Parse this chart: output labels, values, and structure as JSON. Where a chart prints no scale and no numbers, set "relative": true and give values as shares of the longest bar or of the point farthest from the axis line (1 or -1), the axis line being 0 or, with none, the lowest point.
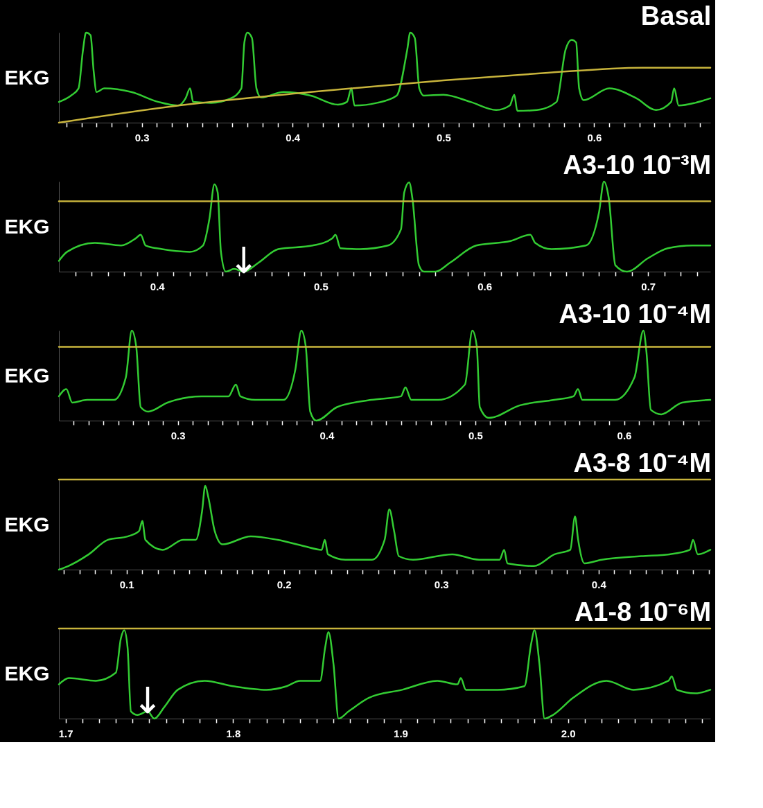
{
  "chart_data": [
    {
      "type": "line",
      "title": "Basal",
      "ylabel": "EKG",
      "relative": true,
      "xlim": [
        0.245,
        0.677
      ],
      "xticks": [
        {
          "value": 0.25,
          "label": null
        },
        {
          "value": 0.26,
          "label": null
        },
        {
          "value": 0.27,
          "label": null
        },
        {
          "value": 0.28,
          "label": null
        },
        {
          "value": 0.29,
          "label": null
        },
        0.3,
        {
          "value": 0.31,
          "label": null
        },
        {
          "value": 0.32,
          "label": null
        },
        {
          "value": 0.33,
          "label": null
        },
        {
          "value": 0.34,
          "label": null
        },
        {
          "value": 0.35,
          "label": null
        },
        {
          "value": 0.36,
          "label": null
        },
        {
          "value": 0.37,
          "label": null
        },
        {
          "value": 0.38,
          "label": null
        },
        {
          "value": 0.39,
          "label": null
        },
        0.4,
        {
          "value": 0.41,
          "label": null
        },
        {
          "value": 0.42,
          "label": null
        },
        {
          "value": 0.43,
          "label": null
        },
        {
          "value": 0.44,
          "label": null
        },
        {
          "value": 0.45,
          "label": null
        },
        {
          "value": 0.46,
          "label": null
        },
        {
          "value": 0.47,
          "label": null
        },
        {
          "value": 0.48,
          "label": null
        },
        {
          "value": 0.49,
          "label": null
        },
        0.5,
        {
          "value": 0.51,
          "label": null
        },
        {
          "value": 0.52,
          "label": null
        },
        {
          "value": 0.53,
          "label": null
        },
        {
          "value": 0.54,
          "label": null
        },
        {
          "value": 0.55,
          "label": null
        },
        {
          "value": 0.56,
          "label": null
        },
        {
          "value": 0.57,
          "label": null
        },
        {
          "value": 0.58,
          "label": null
        },
        {
          "value": 0.59,
          "label": null
        },
        0.6,
        {
          "value": 0.61,
          "label": null
        },
        {
          "value": 0.62,
          "label": null
        },
        {
          "value": 0.63,
          "label": null
        },
        {
          "value": 0.64,
          "label": null
        },
        {
          "value": 0.65,
          "label": null
        },
        {
          "value": 0.66,
          "label": null
        },
        {
          "value": 0.67,
          "label": null
        }
      ],
      "series": [
        {
          "color": "#33cc33",
          "x": [
            0.245,
            0.253,
            0.258,
            0.261,
            0.263,
            0.266,
            0.268,
            0.27,
            0.275,
            0.293,
            0.311,
            0.324,
            0.329,
            0.332,
            0.334,
            0.346,
            0.359,
            0.366,
            0.368,
            0.37,
            0.373,
            0.376,
            0.379,
            0.394,
            0.412,
            0.43,
            0.436,
            0.439,
            0.441,
            0.456,
            0.469,
            0.476,
            0.478,
            0.481,
            0.484,
            0.487,
            0.5,
            0.518,
            0.535,
            0.544,
            0.547,
            0.549,
            0.562,
            0.575,
            0.581,
            0.585,
            0.588,
            0.59,
            0.593,
            0.61,
            0.628,
            0.641,
            0.651,
            0.653,
            0.656,
            0.667,
            0.677
          ],
          "values": [
            0.23,
            0.3,
            0.38,
            0.81,
            1,
            0.97,
            0.58,
            0.34,
            0.38,
            0.34,
            0.23,
            0.19,
            0.27,
            0.38,
            0.23,
            0.22,
            0.27,
            0.38,
            0.89,
            1,
            0.94,
            0.38,
            0.28,
            0.34,
            0.3,
            0.2,
            0.23,
            0.38,
            0.19,
            0.22,
            0.3,
            0.81,
            1,
            0.94,
            0.38,
            0.3,
            0.31,
            0.23,
            0.14,
            0.19,
            0.31,
            0.13,
            0.14,
            0.23,
            0.81,
            0.92,
            0.89,
            0.38,
            0.25,
            0.38,
            0.27,
            0.14,
            0.23,
            0.38,
            0.19,
            0.22,
            0.27
          ]
        },
        {
          "color": "#c8b43c",
          "x": [
            0.245,
            0.324,
            0.412,
            0.5,
            0.566,
            0.632,
            0.677
          ],
          "values": [
            0,
            0.19,
            0.34,
            0.47,
            0.55,
            0.61,
            0.61
          ]
        }
      ]
    },
    {
      "type": "line",
      "title": "A3-10 10⁻³M",
      "ylabel": "EKG",
      "relative": true,
      "xlim": [
        0.34,
        0.738
      ],
      "xticks": [
        {
          "value": 0.35,
          "label": null
        },
        {
          "value": 0.36,
          "label": null
        },
        {
          "value": 0.37,
          "label": null
        },
        {
          "value": 0.38,
          "label": null
        },
        {
          "value": 0.39,
          "label": null
        },
        0.4,
        {
          "value": 0.41,
          "label": null
        },
        {
          "value": 0.42,
          "label": null
        },
        {
          "value": 0.43,
          "label": null
        },
        {
          "value": 0.44,
          "label": null
        },
        {
          "value": 0.45,
          "label": null
        },
        {
          "value": 0.46,
          "label": null
        },
        {
          "value": 0.47,
          "label": null
        },
        {
          "value": 0.48,
          "label": null
        },
        {
          "value": 0.49,
          "label": null
        },
        0.5,
        {
          "value": 0.51,
          "label": null
        },
        {
          "value": 0.52,
          "label": null
        },
        {
          "value": 0.53,
          "label": null
        },
        {
          "value": 0.54,
          "label": null
        },
        {
          "value": 0.55,
          "label": null
        },
        {
          "value": 0.56,
          "label": null
        },
        {
          "value": 0.57,
          "label": null
        },
        {
          "value": 0.58,
          "label": null
        },
        {
          "value": 0.59,
          "label": null
        },
        0.6,
        {
          "value": 0.61,
          "label": null
        },
        {
          "value": 0.62,
          "label": null
        },
        {
          "value": 0.63,
          "label": null
        },
        {
          "value": 0.64,
          "label": null
        },
        {
          "value": 0.65,
          "label": null
        },
        {
          "value": 0.66,
          "label": null
        },
        {
          "value": 0.67,
          "label": null
        },
        {
          "value": 0.68,
          "label": null
        },
        {
          "value": 0.69,
          "label": null
        },
        0.7,
        {
          "value": 0.71,
          "label": null
        },
        {
          "value": 0.72,
          "label": null
        },
        {
          "value": 0.73,
          "label": null
        }
      ],
      "annotations": [
        {
          "text": "↓",
          "x": 0.453,
          "y": 0
        }
      ],
      "series": [
        {
          "color": "#33cc33",
          "x": [
            0.34,
            0.345,
            0.362,
            0.378,
            0.387,
            0.39,
            0.393,
            0.403,
            0.42,
            0.428,
            0.432,
            0.435,
            0.437,
            0.439,
            0.442,
            0.447,
            0.453,
            0.462,
            0.474,
            0.495,
            0.507,
            0.509,
            0.512,
            0.524,
            0.541,
            0.549,
            0.551,
            0.554,
            0.556,
            0.56,
            0.563,
            0.57,
            0.579,
            0.595,
            0.616,
            0.628,
            0.631,
            0.641,
            0.662,
            0.67,
            0.673,
            0.676,
            0.68,
            0.687,
            0.7,
            0.712,
            0.727,
            0.738
          ],
          "values": [
            0.12,
            0.22,
            0.32,
            0.29,
            0.37,
            0.41,
            0.29,
            0.25,
            0.22,
            0.29,
            0.59,
            0.97,
            0.88,
            0.22,
            0,
            0.03,
            0,
            0.1,
            0.25,
            0.29,
            0.37,
            0.41,
            0.26,
            0.25,
            0.29,
            0.47,
            0.88,
            0.99,
            0.81,
            0.07,
            0,
            0,
            0.1,
            0.29,
            0.34,
            0.41,
            0.32,
            0.25,
            0.29,
            0.66,
            1,
            0.81,
            0.07,
            0,
            0.15,
            0.26,
            0.29,
            0.29
          ]
        },
        {
          "color": "#c8b43c",
          "x": [
            0.34,
            0.738
          ],
          "values": [
            0.78,
            0.78
          ]
        }
      ]
    },
    {
      "type": "line",
      "title": "A3-10 10⁻⁴M",
      "ylabel": "EKG",
      "relative": true,
      "xlim": [
        0.22,
        0.658
      ],
      "xticks": [
        {
          "value": 0.23,
          "label": null
        },
        {
          "value": 0.24,
          "label": null
        },
        {
          "value": 0.25,
          "label": null
        },
        {
          "value": 0.26,
          "label": null
        },
        {
          "value": 0.27,
          "label": null
        },
        {
          "value": 0.28,
          "label": null
        },
        {
          "value": 0.29,
          "label": null
        },
        0.3,
        {
          "value": 0.31,
          "label": null
        },
        {
          "value": 0.32,
          "label": null
        },
        {
          "value": 0.33,
          "label": null
        },
        {
          "value": 0.34,
          "label": null
        },
        {
          "value": 0.35,
          "label": null
        },
        {
          "value": 0.36,
          "label": null
        },
        {
          "value": 0.37,
          "label": null
        },
        {
          "value": 0.38,
          "label": null
        },
        {
          "value": 0.39,
          "label": null
        },
        0.4,
        {
          "value": 0.41,
          "label": null
        },
        {
          "value": 0.42,
          "label": null
        },
        {
          "value": 0.43,
          "label": null
        },
        {
          "value": 0.44,
          "label": null
        },
        {
          "value": 0.45,
          "label": null
        },
        {
          "value": 0.46,
          "label": null
        },
        {
          "value": 0.47,
          "label": null
        },
        {
          "value": 0.48,
          "label": null
        },
        {
          "value": 0.49,
          "label": null
        },
        0.5,
        {
          "value": 0.51,
          "label": null
        },
        {
          "value": 0.52,
          "label": null
        },
        {
          "value": 0.53,
          "label": null
        },
        {
          "value": 0.54,
          "label": null
        },
        {
          "value": 0.55,
          "label": null
        },
        {
          "value": 0.56,
          "label": null
        },
        {
          "value": 0.57,
          "label": null
        },
        {
          "value": 0.58,
          "label": null
        },
        {
          "value": 0.59,
          "label": null
        },
        0.6,
        {
          "value": 0.61,
          "label": null
        },
        {
          "value": 0.62,
          "label": null
        },
        {
          "value": 0.63,
          "label": null
        },
        {
          "value": 0.64,
          "label": null
        },
        {
          "value": 0.65,
          "label": null
        }
      ],
      "series": [
        {
          "color": "#33cc33",
          "x": [
            0.22,
            0.225,
            0.229,
            0.239,
            0.257,
            0.265,
            0.269,
            0.272,
            0.275,
            0.28,
            0.293,
            0.316,
            0.334,
            0.339,
            0.342,
            0.352,
            0.371,
            0.379,
            0.383,
            0.386,
            0.389,
            0.393,
            0.407,
            0.43,
            0.45,
            0.453,
            0.457,
            0.475,
            0.493,
            0.498,
            0.501,
            0.503,
            0.509,
            0.53,
            0.553,
            0.566,
            0.569,
            0.572,
            0.594,
            0.607,
            0.613,
            0.615,
            0.618,
            0.625,
            0.639,
            0.658
          ],
          "values": [
            0.27,
            0.35,
            0.2,
            0.23,
            0.23,
            0.48,
            1,
            0.82,
            0.15,
            0.1,
            0.2,
            0.27,
            0.27,
            0.4,
            0.27,
            0.23,
            0.23,
            0.57,
            1,
            0.82,
            0.1,
            0,
            0.15,
            0.23,
            0.27,
            0.37,
            0.23,
            0.23,
            0.4,
            1,
            0.82,
            0.15,
            0.03,
            0.17,
            0.23,
            0.27,
            0.35,
            0.23,
            0.23,
            0.48,
            1,
            0.77,
            0.12,
            0.07,
            0.2,
            0.23
          ]
        },
        {
          "color": "#c8b43c",
          "x": [
            0.22,
            0.658
          ],
          "values": [
            0.82,
            0.82
          ]
        }
      ]
    },
    {
      "type": "line",
      "title": "A3-8 10⁻⁴M",
      "ylabel": "EKG",
      "relative": true,
      "xlim": [
        0.057,
        0.471
      ],
      "xticks": [
        {
          "value": 0.06,
          "label": null
        },
        {
          "value": 0.07,
          "label": null
        },
        {
          "value": 0.08,
          "label": null
        },
        {
          "value": 0.09,
          "label": null
        },
        0.1,
        {
          "value": 0.11,
          "label": null
        },
        {
          "value": 0.12,
          "label": null
        },
        {
          "value": 0.13,
          "label": null
        },
        {
          "value": 0.14,
          "label": null
        },
        {
          "value": 0.15,
          "label": null
        },
        {
          "value": 0.16,
          "label": null
        },
        {
          "value": 0.17,
          "label": null
        },
        {
          "value": 0.18,
          "label": null
        },
        {
          "value": 0.19,
          "label": null
        },
        0.2,
        {
          "value": 0.21,
          "label": null
        },
        {
          "value": 0.22,
          "label": null
        },
        {
          "value": 0.23,
          "label": null
        },
        {
          "value": 0.24,
          "label": null
        },
        {
          "value": 0.25,
          "label": null
        },
        {
          "value": 0.26,
          "label": null
        },
        {
          "value": 0.27,
          "label": null
        },
        {
          "value": 0.28,
          "label": null
        },
        {
          "value": 0.29,
          "label": null
        },
        0.3,
        {
          "value": 0.31,
          "label": null
        },
        {
          "value": 0.32,
          "label": null
        },
        {
          "value": 0.33,
          "label": null
        },
        {
          "value": 0.34,
          "label": null
        },
        {
          "value": 0.35,
          "label": null
        },
        {
          "value": 0.36,
          "label": null
        },
        {
          "value": 0.37,
          "label": null
        },
        {
          "value": 0.38,
          "label": null
        },
        {
          "value": 0.39,
          "label": null
        },
        0.4,
        {
          "value": 0.41,
          "label": null
        },
        {
          "value": 0.42,
          "label": null
        },
        {
          "value": 0.43,
          "label": null
        },
        {
          "value": 0.44,
          "label": null
        },
        {
          "value": 0.45,
          "label": null
        },
        {
          "value": 0.46,
          "label": null
        },
        {
          "value": 0.47,
          "label": null
        }
      ],
      "series": [
        {
          "color": "#33cc33",
          "x": [
            0.057,
            0.063,
            0.076,
            0.088,
            0.101,
            0.108,
            0.11,
            0.112,
            0.123,
            0.136,
            0.144,
            0.148,
            0.15,
            0.152,
            0.156,
            0.161,
            0.179,
            0.196,
            0.213,
            0.224,
            0.226,
            0.228,
            0.239,
            0.256,
            0.264,
            0.267,
            0.27,
            0.273,
            0.282,
            0.307,
            0.324,
            0.337,
            0.34,
            0.342,
            0.359,
            0.372,
            0.382,
            0.385,
            0.387,
            0.391,
            0.402,
            0.427,
            0.445,
            0.458,
            0.46,
            0.463,
            0.471
          ],
          "values": [
            0,
            0.04,
            0.17,
            0.33,
            0.37,
            0.43,
            0.54,
            0.33,
            0.22,
            0.33,
            0.33,
            0.65,
            0.93,
            0.8,
            0.43,
            0.28,
            0.37,
            0.33,
            0.26,
            0.22,
            0.33,
            0.17,
            0.11,
            0.11,
            0.33,
            0.67,
            0.43,
            0.15,
            0.11,
            0.17,
            0.11,
            0.11,
            0.22,
            0.07,
            0.04,
            0.17,
            0.22,
            0.59,
            0.33,
            0.07,
            0.11,
            0.15,
            0.17,
            0.22,
            0.33,
            0.17,
            0.22
          ]
        },
        {
          "color": "#c8b43c",
          "x": [
            0.057,
            0.471
          ],
          "values": [
            1,
            1
          ]
        }
      ]
    },
    {
      "type": "line",
      "title": "A1-8 10⁻⁶M",
      "ylabel": "EKG",
      "relative": true,
      "xlim": [
        1.696,
        2.085
      ],
      "xticks": [
        1.7,
        {
          "value": 1.71,
          "label": null
        },
        {
          "value": 1.72,
          "label": null
        },
        {
          "value": 1.73,
          "label": null
        },
        {
          "value": 1.74,
          "label": null
        },
        {
          "value": 1.75,
          "label": null
        },
        {
          "value": 1.76,
          "label": null
        },
        {
          "value": 1.77,
          "label": null
        },
        {
          "value": 1.78,
          "label": null
        },
        {
          "value": 1.79,
          "label": null
        },
        1.8,
        {
          "value": 1.81,
          "label": null
        },
        {
          "value": 1.82,
          "label": null
        },
        {
          "value": 1.83,
          "label": null
        },
        {
          "value": 1.84,
          "label": null
        },
        {
          "value": 1.85,
          "label": null
        },
        {
          "value": 1.86,
          "label": null
        },
        {
          "value": 1.87,
          "label": null
        },
        {
          "value": 1.88,
          "label": null
        },
        {
          "value": 1.89,
          "label": null
        },
        1.9,
        {
          "value": 1.91,
          "label": null
        },
        {
          "value": 1.92,
          "label": null
        },
        {
          "value": 1.93,
          "label": null
        },
        {
          "value": 1.94,
          "label": null
        },
        {
          "value": 1.95,
          "label": null
        },
        {
          "value": 1.96,
          "label": null
        },
        {
          "value": 1.97,
          "label": null
        },
        {
          "value": 1.98,
          "label": null
        },
        {
          "value": 1.99,
          "label": null
        },
        {
          "value": 2,
          "label": "2.0"
        },
        {
          "value": 2.01,
          "label": null
        },
        {
          "value": 2.02,
          "label": null
        },
        {
          "value": 2.03,
          "label": null
        },
        {
          "value": 2.04,
          "label": null
        },
        {
          "value": 2.05,
          "label": null
        },
        {
          "value": 2.06,
          "label": null
        },
        {
          "value": 2.07,
          "label": null
        },
        {
          "value": 2.08,
          "label": null
        }
      ],
      "annotations": [
        {
          "text": "↓",
          "x": 1.749,
          "y": 0.08
        }
      ],
      "series": [
        {
          "color": "#33cc33",
          "x": [
            1.696,
            1.702,
            1.718,
            1.73,
            1.733,
            1.735,
            1.737,
            1.739,
            1.743,
            1.749,
            1.753,
            1.759,
            1.767,
            1.783,
            1.8,
            1.82,
            1.832,
            1.84,
            1.852,
            1.855,
            1.857,
            1.86,
            1.863,
            1.869,
            1.881,
            1.901,
            1.922,
            1.934,
            1.936,
            1.939,
            1.958,
            1.974,
            1.978,
            1.98,
            1.983,
            1.986,
            1.991,
            2.003,
            2.023,
            2.039,
            2.06,
            2.062,
            2.065,
            2.076,
            2.085
          ],
          "values": [
            0.38,
            0.45,
            0.42,
            0.51,
            0.89,
            0.98,
            0.79,
            0.08,
            0.04,
            0.08,
            0,
            0.13,
            0.32,
            0.42,
            0.36,
            0.32,
            0.36,
            0.42,
            0.42,
            0.79,
            0.96,
            0.6,
            0,
            0.08,
            0.23,
            0.32,
            0.42,
            0.38,
            0.45,
            0.32,
            0.32,
            0.36,
            0.83,
            0.98,
            0.6,
            0,
            0.04,
            0.23,
            0.42,
            0.32,
            0.42,
            0.47,
            0.32,
            0.28,
            0.32
          ]
        },
        {
          "color": "#c8b43c",
          "x": [
            1.696,
            2.085
          ],
          "values": [
            1,
            1
          ]
        }
      ]
    }
  ]
}
